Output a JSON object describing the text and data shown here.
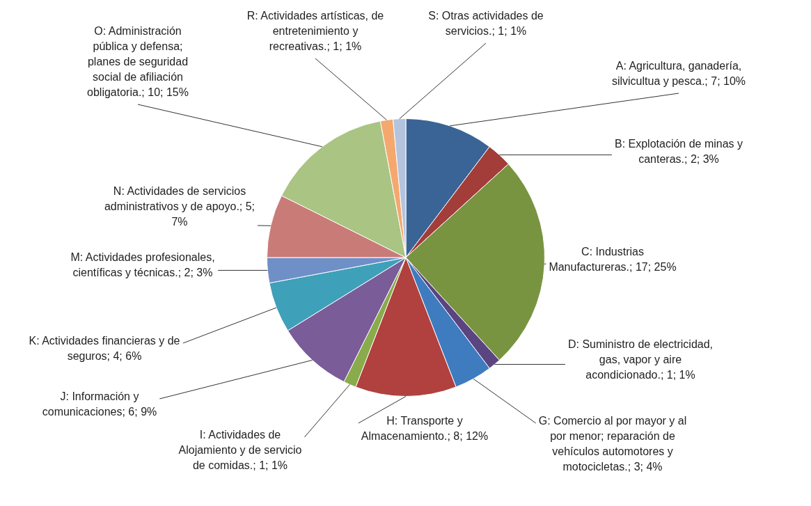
{
  "chart_data": {
    "type": "pie",
    "categories": [
      "A: Agricultura, ganadería, silvicultua y pesca.",
      "B: Explotación de minas y canteras.",
      "C: Industrias Manufactureras.",
      "D: Suministro de electricidad, gas, vapor y aire acondicionado.",
      "G: Comercio al por mayor y al por menor; reparación de vehículos automotores y motocicletas.",
      "H: Transporte y Almacenamiento.",
      "I: Actividades de Alojamiento y de servicio de comidas.",
      "J: Información y comunicaciones",
      "K: Actividades financieras y de seguros",
      "M: Actividades profesionales, científicas y técnicas.",
      "N: Actividades de servicios administrativos y de apoyo.",
      "O: Administración pública y defensa; planes de seguridad social de afiliación obligatoria.",
      "R: Actividades artísticas, de entretenimiento y recreativas.",
      "S: Otras actividades de servicios."
    ],
    "values": [
      7,
      2,
      17,
      1,
      3,
      8,
      1,
      6,
      4,
      2,
      5,
      10,
      1,
      1
    ],
    "colors": [
      "#3a6496",
      "#a33d3a",
      "#789440",
      "#5a4580",
      "#3f7bbf",
      "#b0413e",
      "#8aab4b",
      "#7a5c99",
      "#3fa0b9",
      "#6f8fc7",
      "#c97b78",
      "#a9c483",
      "#f5a86e",
      "#b4c4de"
    ],
    "value_labels": [
      "7; 10%",
      "2; 3%",
      "17; 25%",
      "1; 1%",
      "3; 4%",
      "8; 12%",
      "1; 1%",
      "6; 9%",
      "4; 6%",
      "2; 3%",
      "5; 7%",
      "10; 15%",
      "1; 1%",
      "1; 1%"
    ]
  }
}
